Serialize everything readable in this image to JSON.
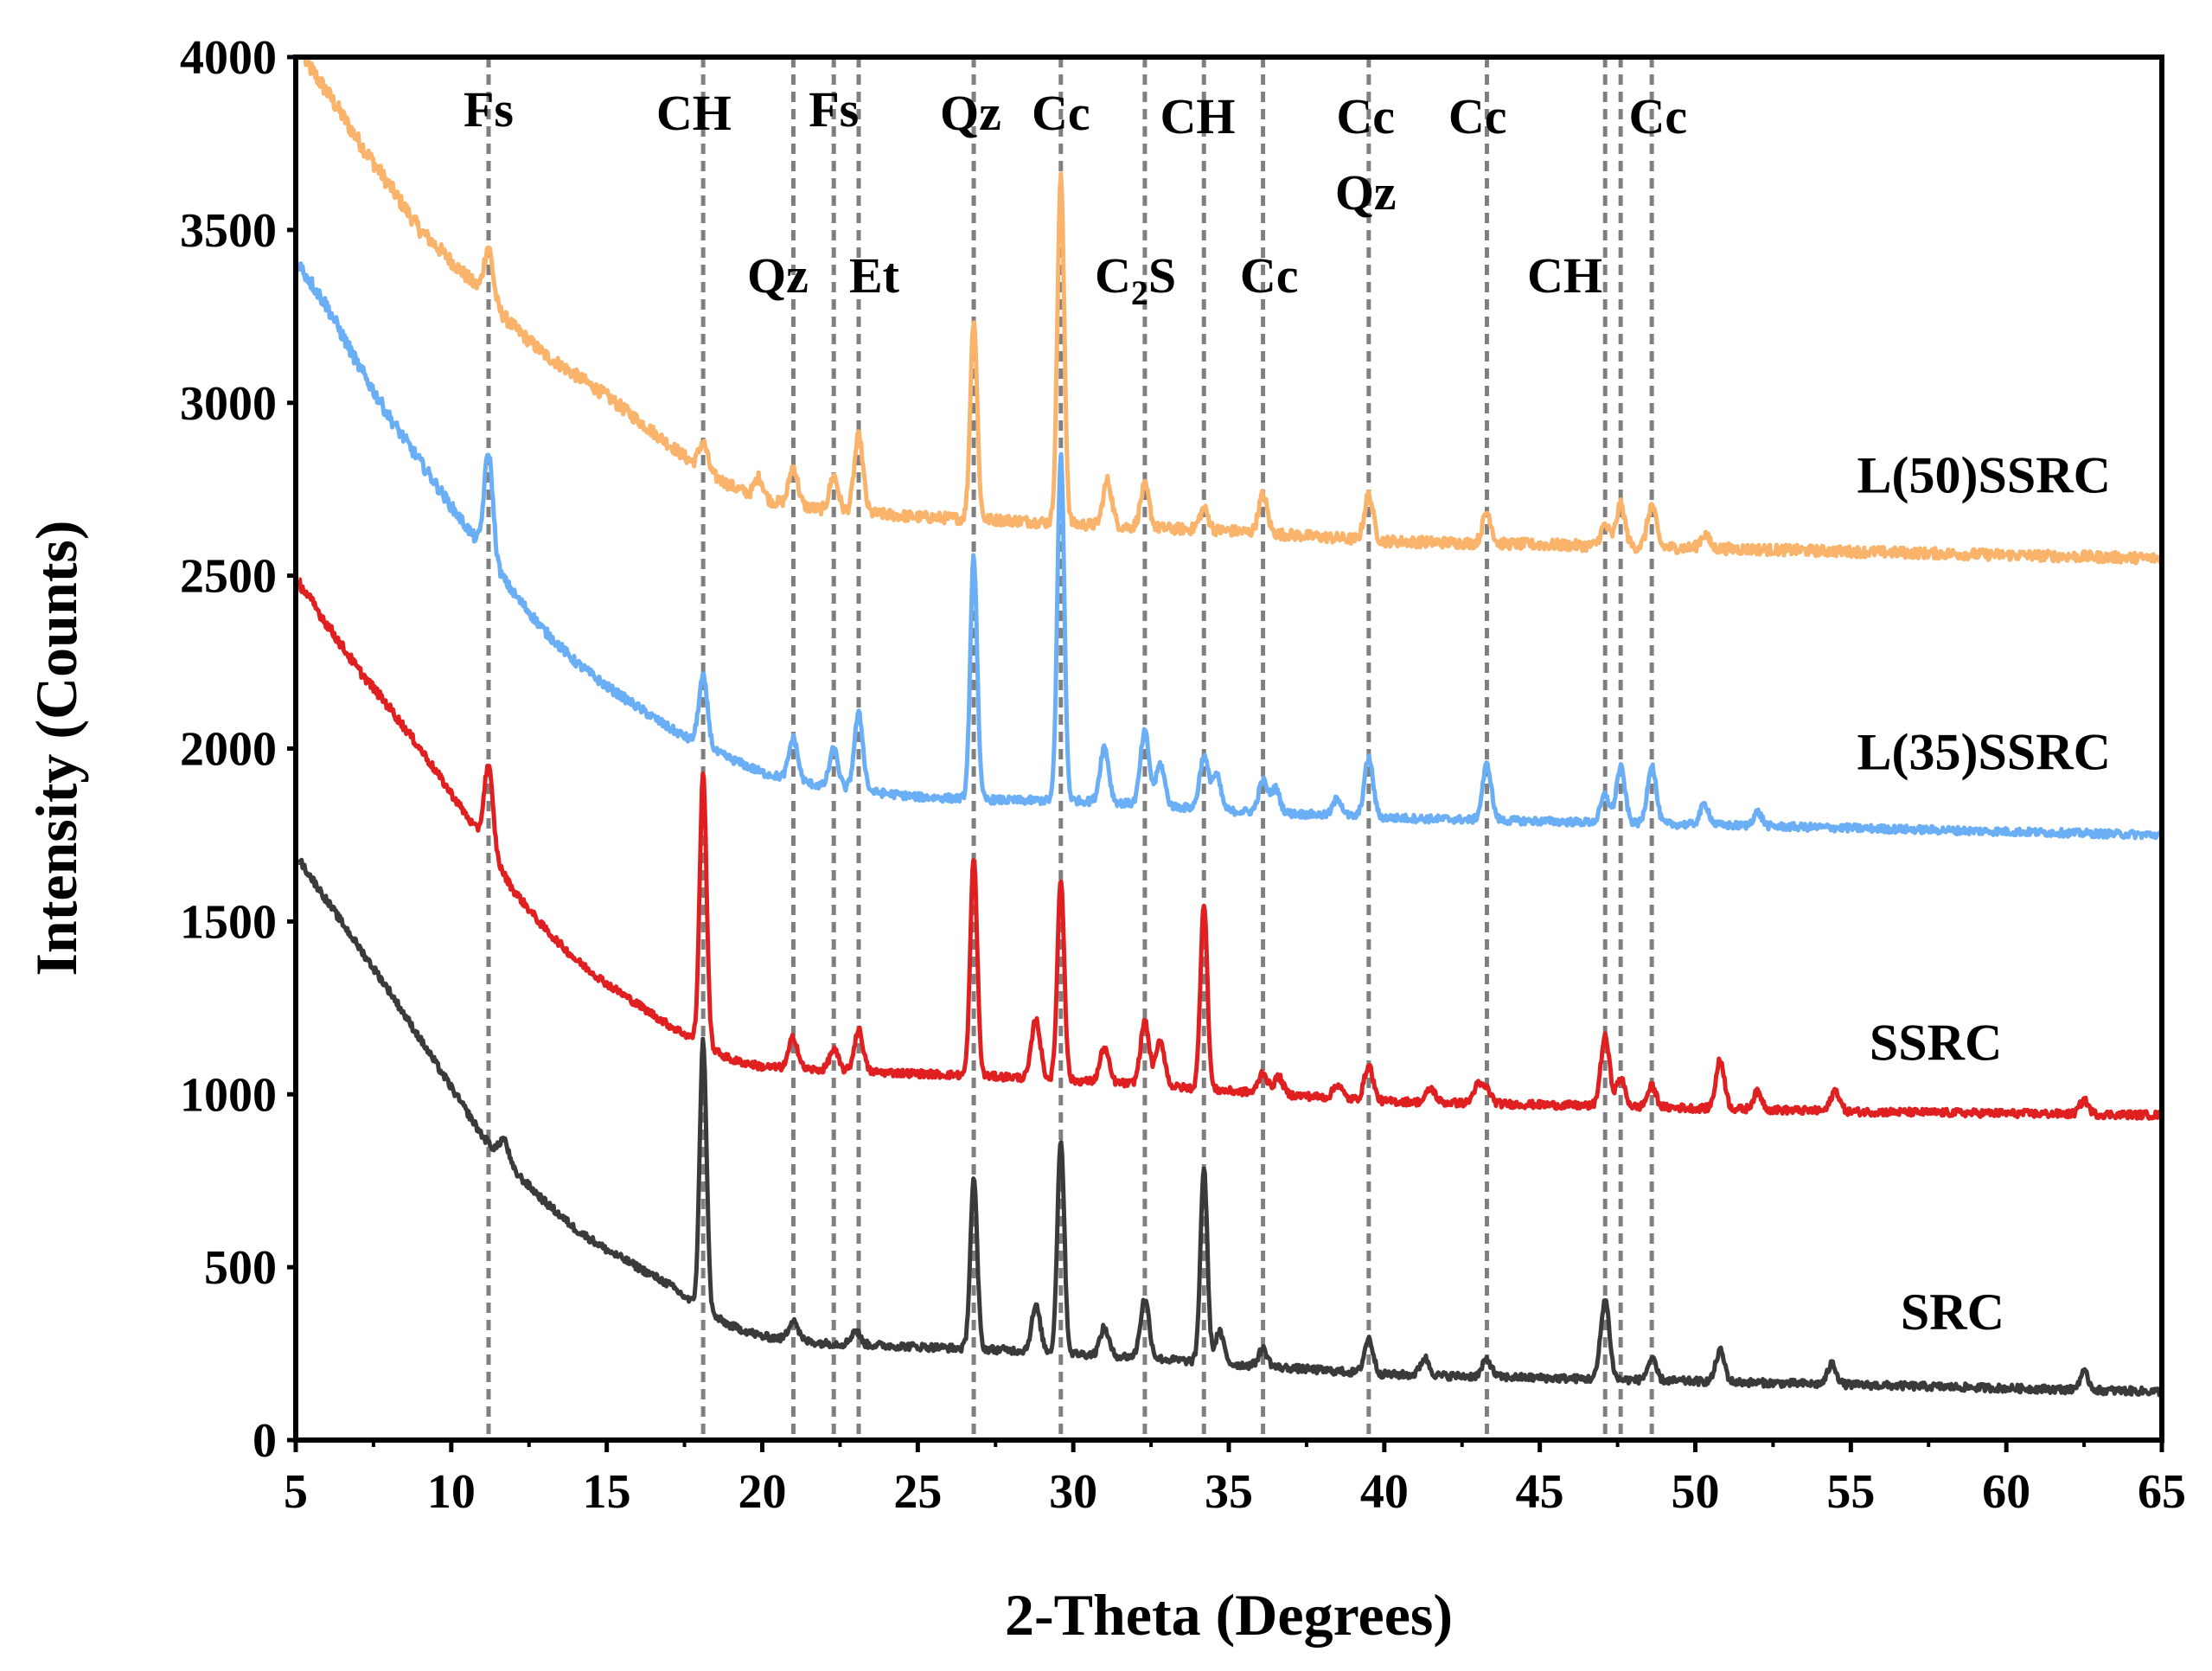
{
  "chart_data": {
    "type": "line",
    "xlabel": "2-Theta (Degrees)",
    "ylabel": "Intensity (Counts)",
    "xlim": [
      5,
      65
    ],
    "ylim": [
      0,
      4000
    ],
    "x_ticks": [
      5,
      10,
      15,
      20,
      25,
      30,
      35,
      40,
      45,
      50,
      55,
      60,
      65
    ],
    "y_ticks": [
      0,
      500,
      1000,
      1500,
      2000,
      2500,
      3000,
      3500,
      4000
    ],
    "x_tick_labels": [
      "5",
      "10",
      "15",
      "20",
      "25",
      "30",
      "35",
      "40",
      "45",
      "50",
      "55",
      "60",
      "65"
    ],
    "y_tick_labels": [
      "0",
      "500",
      "1000",
      "1500",
      "2000",
      "2500",
      "3000",
      "3500",
      "4000"
    ],
    "grid": false,
    "reference_lines_x": [
      11.2,
      18.1,
      21.0,
      22.3,
      23.1,
      26.8,
      29.6,
      32.3,
      34.2,
      36.1,
      39.5,
      43.3,
      47.1,
      47.6,
      48.6
    ],
    "annotations": [
      {
        "text": "Fs",
        "x": 11.2,
        "y": 3800
      },
      {
        "text": "CH",
        "x": 17.8,
        "y": 3790
      },
      {
        "text": "Fs",
        "x": 22.3,
        "y": 3800
      },
      {
        "text": "Qz",
        "x": 20.5,
        "y": 3320
      },
      {
        "text": "Et",
        "x": 23.6,
        "y": 3320
      },
      {
        "text": "Qz",
        "x": 26.7,
        "y": 3790
      },
      {
        "text": "Cc",
        "x": 29.6,
        "y": 3790
      },
      {
        "text": "CH",
        "x": 34.0,
        "y": 3780
      },
      {
        "text": "Cc",
        "x": 36.3,
        "y": 3320
      },
      {
        "text": "Cc",
        "x": 39.4,
        "y": 3780
      },
      {
        "text": "Qz",
        "x": 39.4,
        "y": 3560
      },
      {
        "text": "Cc",
        "x": 43.0,
        "y": 3780
      },
      {
        "text": "CH",
        "x": 45.8,
        "y": 3320
      },
      {
        "text": "Cc",
        "x": 48.8,
        "y": 3780
      }
    ],
    "c2s_annotation": {
      "main": "C",
      "sub": "2",
      "tail": "S",
      "x": 32.0,
      "y": 3320
    },
    "series": [
      {
        "name": "L(50)SSRC",
        "color": "#FAB36A",
        "label_x": 55.2,
        "label_y": 2740,
        "baseline": [
          [
            5.3,
            3990
          ],
          [
            6,
            3900
          ],
          [
            7,
            3760
          ],
          [
            8,
            3630
          ],
          [
            9,
            3500
          ],
          [
            10,
            3410
          ],
          [
            11,
            3320
          ],
          [
            12,
            3220
          ],
          [
            13,
            3140
          ],
          [
            14,
            3080
          ],
          [
            15,
            3020
          ],
          [
            16,
            2950
          ],
          [
            17,
            2880
          ],
          [
            18,
            2810
          ],
          [
            19,
            2760
          ],
          [
            20,
            2720
          ],
          [
            22,
            2690
          ],
          [
            25,
            2670
          ],
          [
            28,
            2660
          ],
          [
            30,
            2650
          ],
          [
            32,
            2640
          ],
          [
            35,
            2630
          ],
          [
            40,
            2600
          ],
          [
            45,
            2590
          ],
          [
            50,
            2580
          ],
          [
            55,
            2570
          ],
          [
            60,
            2560
          ],
          [
            65,
            2550
          ]
        ],
        "peaks": [
          [
            11.2,
            150
          ],
          [
            18.1,
            80
          ],
          [
            19.9,
            60
          ],
          [
            21.0,
            110
          ],
          [
            22.3,
            100
          ],
          [
            23.1,
            220
          ],
          [
            26.8,
            580
          ],
          [
            29.6,
            1000
          ],
          [
            31.1,
            130
          ],
          [
            32.3,
            120
          ],
          [
            34.2,
            60
          ],
          [
            36.1,
            110
          ],
          [
            39.5,
            130
          ],
          [
            43.3,
            90
          ],
          [
            47.1,
            60
          ],
          [
            47.6,
            120
          ],
          [
            48.6,
            120
          ],
          [
            50.3,
            40
          ]
        ]
      },
      {
        "name": "L(35)SSRC",
        "color": "#6AAEF5",
        "label_x": 55.2,
        "label_y": 1940,
        "baseline": [
          [
            5.1,
            3400
          ],
          [
            6,
            3280
          ],
          [
            7,
            3110
          ],
          [
            8,
            2960
          ],
          [
            9,
            2830
          ],
          [
            10,
            2700
          ],
          [
            11,
            2580
          ],
          [
            12,
            2450
          ],
          [
            13,
            2340
          ],
          [
            14,
            2250
          ],
          [
            15,
            2180
          ],
          [
            16,
            2120
          ],
          [
            17,
            2060
          ],
          [
            18,
            2010
          ],
          [
            19,
            1970
          ],
          [
            20,
            1930
          ],
          [
            22,
            1890
          ],
          [
            25,
            1860
          ],
          [
            28,
            1850
          ],
          [
            30,
            1850
          ],
          [
            32,
            1840
          ],
          [
            35,
            1820
          ],
          [
            40,
            1800
          ],
          [
            45,
            1790
          ],
          [
            50,
            1780
          ],
          [
            55,
            1770
          ],
          [
            60,
            1760
          ],
          [
            65,
            1750
          ]
        ],
        "peaks": [
          [
            11.2,
            300
          ],
          [
            18.1,
            200
          ],
          [
            21.0,
            120
          ],
          [
            22.3,
            110
          ],
          [
            23.1,
            220
          ],
          [
            26.8,
            700
          ],
          [
            29.6,
            1000
          ],
          [
            31.0,
            160
          ],
          [
            32.3,
            210
          ],
          [
            32.8,
            120
          ],
          [
            34.2,
            150
          ],
          [
            34.6,
            100
          ],
          [
            36.1,
            90
          ],
          [
            36.5,
            70
          ],
          [
            38.5,
            50
          ],
          [
            39.5,
            170
          ],
          [
            43.3,
            160
          ],
          [
            47.1,
            80
          ],
          [
            47.6,
            160
          ],
          [
            48.6,
            170
          ],
          [
            50.3,
            60
          ],
          [
            52,
            40
          ]
        ]
      },
      {
        "name": "SSRC",
        "color": "#E02020",
        "label_x": 55.6,
        "label_y": 1100,
        "baseline": [
          [
            5.1,
            2480
          ],
          [
            6,
            2360
          ],
          [
            7,
            2230
          ],
          [
            8,
            2120
          ],
          [
            9,
            2000
          ],
          [
            10,
            1870
          ],
          [
            11,
            1740
          ],
          [
            12,
            1590
          ],
          [
            13,
            1480
          ],
          [
            14,
            1390
          ],
          [
            15,
            1320
          ],
          [
            16,
            1260
          ],
          [
            17,
            1200
          ],
          [
            18,
            1150
          ],
          [
            19,
            1100
          ],
          [
            20,
            1080
          ],
          [
            22,
            1070
          ],
          [
            25,
            1060
          ],
          [
            28,
            1050
          ],
          [
            30,
            1040
          ],
          [
            32,
            1030
          ],
          [
            35,
            1010
          ],
          [
            40,
            980
          ],
          [
            45,
            970
          ],
          [
            50,
            960
          ],
          [
            55,
            950
          ],
          [
            60,
            945
          ],
          [
            65,
            940
          ]
        ],
        "peaks": [
          [
            11.2,
            240
          ],
          [
            18.1,
            780
          ],
          [
            21.0,
            90
          ],
          [
            22.3,
            60
          ],
          [
            23.1,
            120
          ],
          [
            26.8,
            630
          ],
          [
            28.8,
            170
          ],
          [
            29.6,
            580
          ],
          [
            31.0,
            100
          ],
          [
            32.3,
            180
          ],
          [
            32.8,
            130
          ],
          [
            34.2,
            540
          ],
          [
            36.1,
            60
          ],
          [
            36.6,
            50
          ],
          [
            38.5,
            40
          ],
          [
            39.5,
            100
          ],
          [
            41.5,
            40
          ],
          [
            43.0,
            50
          ],
          [
            43.3,
            40
          ],
          [
            47.1,
            200
          ],
          [
            47.6,
            80
          ],
          [
            48.6,
            60
          ],
          [
            50.8,
            140
          ],
          [
            52,
            50
          ],
          [
            54.5,
            60
          ],
          [
            62.5,
            40
          ]
        ]
      },
      {
        "name": "SRC",
        "color": "#3A3A3A",
        "label_x": 56.6,
        "label_y": 320,
        "baseline": [
          [
            5.1,
            1680
          ],
          [
            6,
            1560
          ],
          [
            7,
            1430
          ],
          [
            8,
            1300
          ],
          [
            9,
            1160
          ],
          [
            10,
            1020
          ],
          [
            11,
            880
          ],
          [
            12,
            780
          ],
          [
            13,
            690
          ],
          [
            14,
            610
          ],
          [
            15,
            550
          ],
          [
            16,
            500
          ],
          [
            17,
            450
          ],
          [
            18,
            380
          ],
          [
            19,
            330
          ],
          [
            20,
            300
          ],
          [
            22,
            280
          ],
          [
            25,
            270
          ],
          [
            28,
            260
          ],
          [
            30,
            250
          ],
          [
            32,
            240
          ],
          [
            35,
            220
          ],
          [
            40,
            190
          ],
          [
            45,
            180
          ],
          [
            50,
            170
          ],
          [
            55,
            160
          ],
          [
            60,
            150
          ],
          [
            65,
            140
          ]
        ],
        "peaks": [
          [
            11.7,
            60
          ],
          [
            18.1,
            780
          ],
          [
            21.0,
            60
          ],
          [
            23.0,
            40
          ],
          [
            26.8,
            490
          ],
          [
            28.8,
            130
          ],
          [
            29.6,
            620
          ],
          [
            31.0,
            80
          ],
          [
            32.3,
            170
          ],
          [
            34.2,
            560
          ],
          [
            34.7,
            90
          ],
          [
            36.1,
            50
          ],
          [
            39.5,
            100
          ],
          [
            41.3,
            50
          ],
          [
            43.3,
            50
          ],
          [
            47.1,
            230
          ],
          [
            48.6,
            60
          ],
          [
            50.8,
            90
          ],
          [
            54.4,
            60
          ],
          [
            62.5,
            50
          ]
        ]
      }
    ]
  }
}
